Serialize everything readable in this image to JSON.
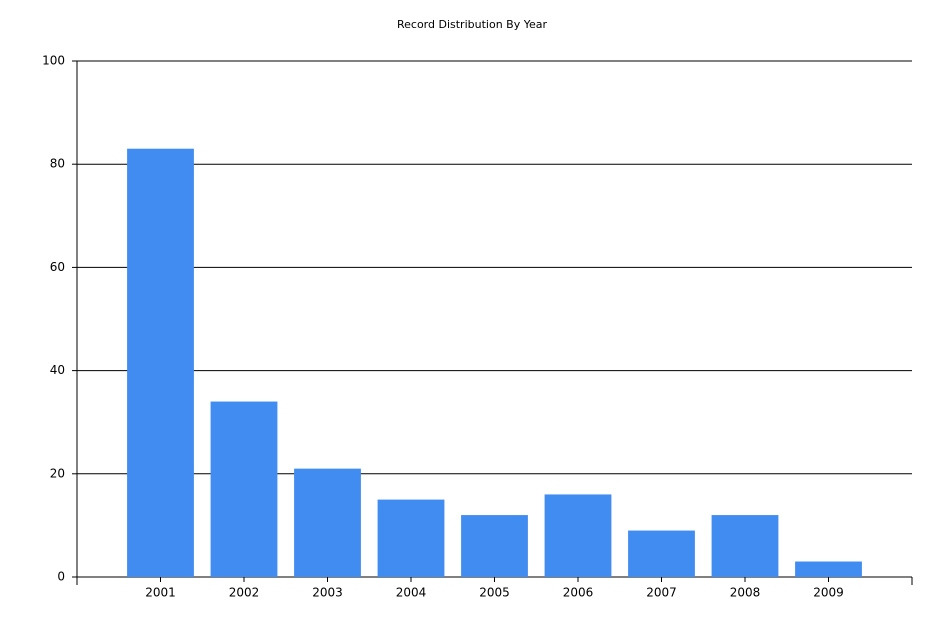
{
  "chart_data": {
    "type": "bar",
    "title": "Record Distribution By Year",
    "categories": [
      "2001",
      "2002",
      "2003",
      "2004",
      "2005",
      "2006",
      "2007",
      "2008",
      "2009"
    ],
    "values": [
      83,
      34,
      21,
      15,
      12,
      16,
      9,
      12,
      3
    ],
    "color": "#418cf0",
    "ylim": [
      0,
      100
    ],
    "yticks": [
      0,
      20,
      40,
      60,
      80,
      100
    ],
    "grid": true
  }
}
